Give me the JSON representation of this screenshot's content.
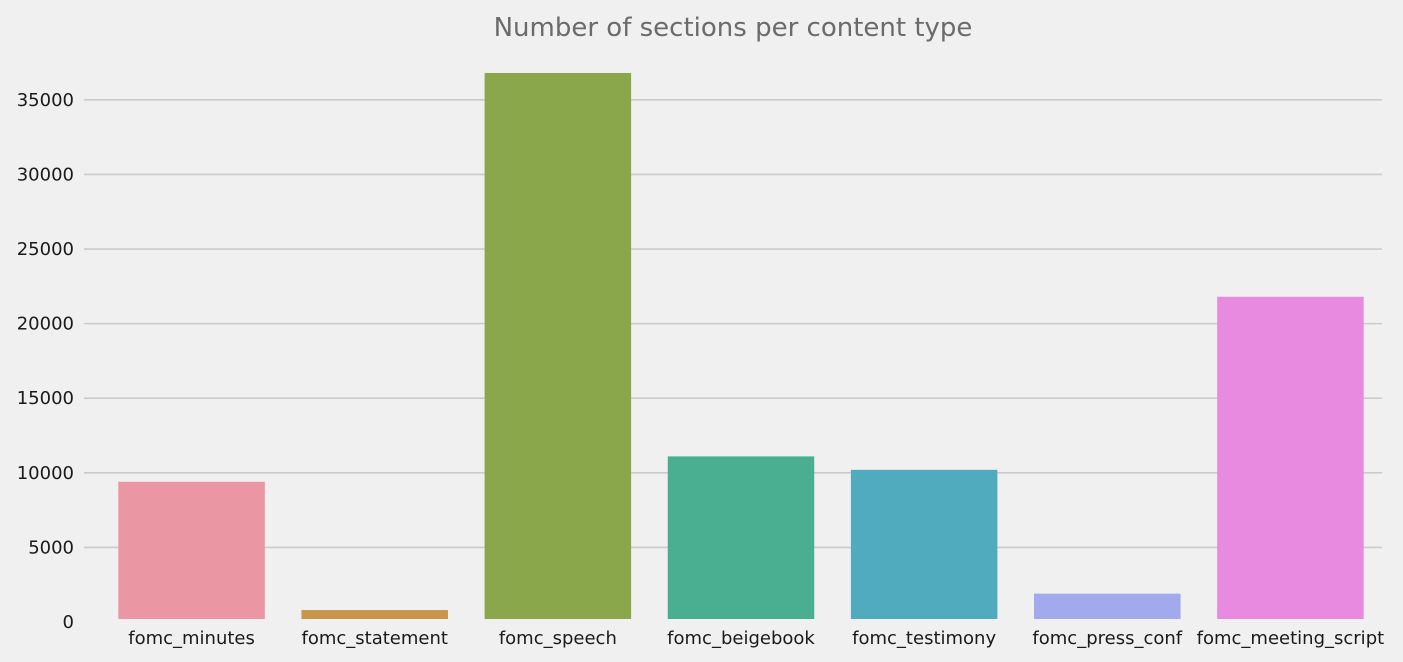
{
  "chart_data": {
    "type": "bar",
    "title": "Number of sections per content type",
    "xlabel": "",
    "ylabel": "",
    "categories": [
      "fomc_minutes",
      "fomc_statement",
      "fomc_speech",
      "fomc_beigebook",
      "fomc_testimony",
      "fomc_press_conf",
      "fomc_meeting_script"
    ],
    "values": [
      9400,
      800,
      36800,
      11100,
      10200,
      1900,
      21800
    ],
    "colors": [
      "#ea96a3",
      "#c8954b",
      "#8aa84b",
      "#4aae91",
      "#4fabbd",
      "#a0aaec",
      "#e88ae0"
    ],
    "ylim": [
      0,
      37000
    ],
    "yticks": [
      "0",
      "5000",
      "10000",
      "15000",
      "20000",
      "25000",
      "30000",
      "35000"
    ],
    "grid": "horizontal",
    "background": "#f0f0f0"
  }
}
